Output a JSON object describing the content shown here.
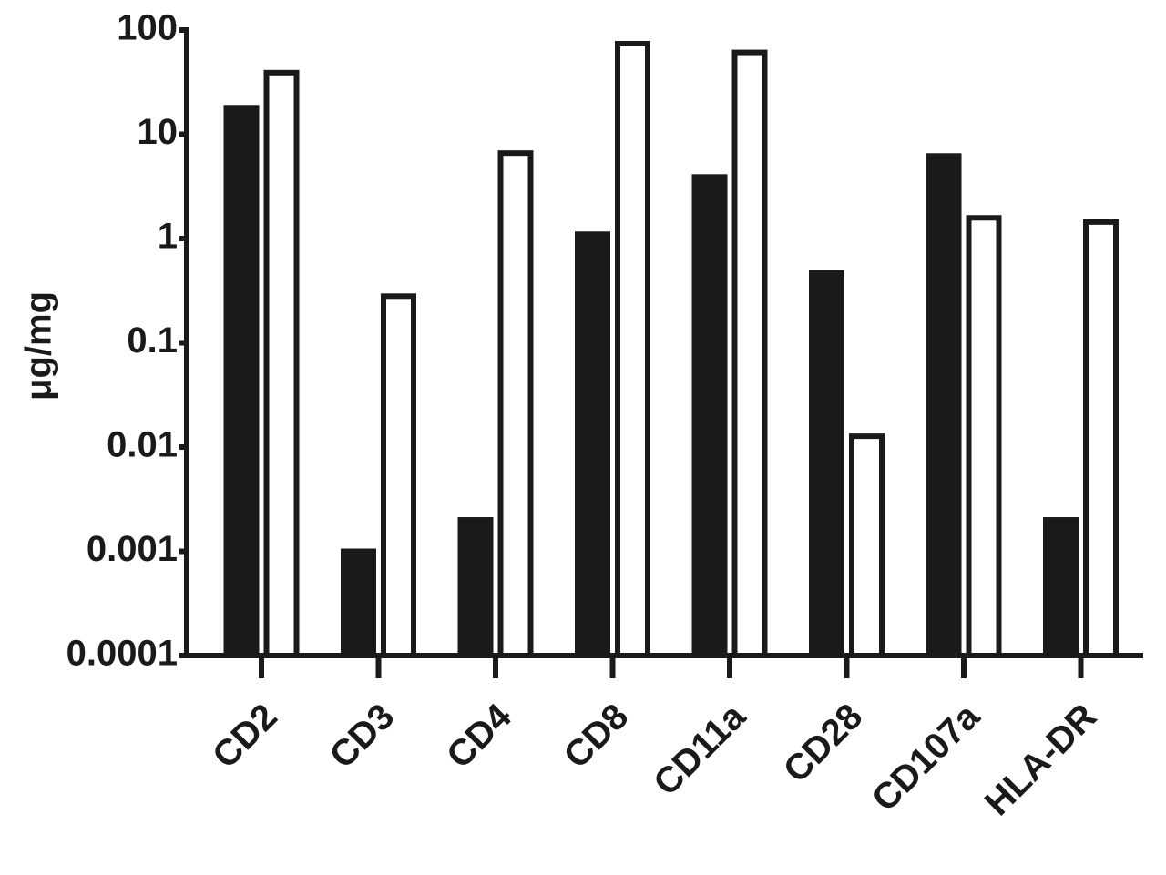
{
  "chart_data": {
    "type": "bar",
    "y_label": "μg/mg",
    "categories": [
      "CD2",
      "CD3",
      "CD4",
      "CD8",
      "CD11a",
      "CD28",
      "CD107a",
      "HLA-DR"
    ],
    "series": [
      {
        "color": "#1a1a1a",
        "values": [
          18,
          0.001,
          0.002,
          1.1,
          3.9,
          0.47,
          6.2,
          0.002
        ]
      },
      {
        "color": "#ffffff",
        "values": [
          39,
          0.28,
          6.6,
          74,
          61,
          0.0127,
          1.58,
          1.44
        ]
      }
    ],
    "log_scale": true,
    "ylim": [
      0.0001,
      100
    ],
    "yticks": [
      0.0001,
      0.001,
      0.01,
      0.1,
      1,
      10,
      100
    ]
  }
}
